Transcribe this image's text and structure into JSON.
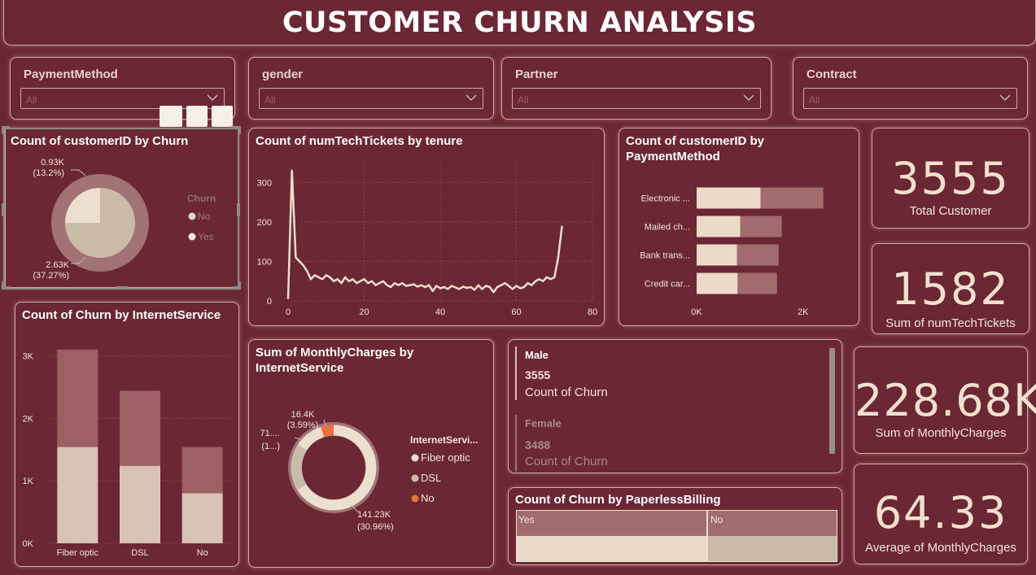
{
  "header": {
    "title": "CUSTOMER CHURN ANALYSIS"
  },
  "slicers": [
    {
      "title": "PaymentMethod",
      "value": "All"
    },
    {
      "title": "gender",
      "value": "All"
    },
    {
      "title": "Partner",
      "value": "All"
    },
    {
      "title": "Contract",
      "value": "All"
    }
  ],
  "pie_churn": {
    "title": "Count of customerID by Churn",
    "legend_title": "Churn",
    "legend": [
      "No",
      "Yes"
    ],
    "label_small_value": "0.93K",
    "label_small_pct": "(13.2%)",
    "label_large_value": "2.63K",
    "label_large_pct": "(37.27%)"
  },
  "line_tenure": {
    "title": "Count of numTechTickets by tenure"
  },
  "bar_payment": {
    "title_line1": "Count of customerID by",
    "title_line2": "PaymentMethod"
  },
  "column_internet": {
    "title": "Count of Churn by InternetService"
  },
  "donut_monthly": {
    "title_line1": "Sum of MonthlyCharges by",
    "title_line2": "InternetService",
    "legend_title": "InternetServi...",
    "legend": [
      "Fiber optic",
      "DSL",
      "No"
    ],
    "label_top_value": "16.4K",
    "label_top_pct": "(3.59%)",
    "label_left_value": "71....",
    "label_left_pct": "(1...)",
    "label_bottom_value": "141.23K",
    "label_bottom_pct": "(30.96%)"
  },
  "multirow_card": {
    "rows": [
      {
        "category": "Male",
        "value": "3555",
        "label": "Count of Churn"
      },
      {
        "category": "Female",
        "value": "3488",
        "label": "Count of Churn"
      }
    ]
  },
  "paperless": {
    "title": "Count of Churn by PaperlessBilling",
    "categories": [
      "Yes",
      "No"
    ]
  },
  "kpis": [
    {
      "value": "3555",
      "label": "Total Customer"
    },
    {
      "value": "1582",
      "label": "Sum of numTechTickets"
    },
    {
      "value": "228.68K",
      "label": "Sum of MonthlyCharges"
    },
    {
      "value": "64.33",
      "label": "Average of MonthlyCharges"
    }
  ],
  "colors": {
    "background": "#6b2733",
    "light": "#ecd9c6",
    "light_muted": "#c9bba8",
    "accent_dark": "#9c6064",
    "orange": "#e8713d"
  },
  "chart_data": [
    {
      "type": "pie",
      "title": "Count of customerID by Churn",
      "legend_title": "Churn",
      "categories": [
        "No",
        "Yes"
      ],
      "labels": [
        "2.63K (37.27%)",
        "0.93K (13.2%)"
      ],
      "legend_position": "right"
    },
    {
      "type": "line",
      "title": "Count of numTechTickets by tenure",
      "x": [
        0,
        1,
        2,
        3,
        4,
        5,
        6,
        7,
        8,
        9,
        10,
        11,
        12,
        13,
        14,
        15,
        16,
        17,
        18,
        19,
        20,
        21,
        22,
        23,
        24,
        25,
        26,
        27,
        28,
        29,
        30,
        31,
        32,
        33,
        34,
        35,
        36,
        37,
        38,
        39,
        40,
        41,
        42,
        43,
        44,
        45,
        46,
        47,
        48,
        49,
        50,
        51,
        52,
        53,
        54,
        55,
        56,
        57,
        58,
        59,
        60,
        61,
        62,
        63,
        64,
        65,
        66,
        67,
        68,
        69,
        70,
        71,
        72
      ],
      "values": [
        5,
        330,
        110,
        100,
        90,
        75,
        55,
        65,
        60,
        55,
        65,
        60,
        50,
        55,
        45,
        60,
        50,
        55,
        45,
        50,
        55,
        45,
        50,
        40,
        45,
        50,
        40,
        35,
        45,
        40,
        45,
        38,
        40,
        42,
        36,
        40,
        35,
        40,
        25,
        38,
        32,
        35,
        30,
        38,
        34,
        30,
        36,
        33,
        35,
        28,
        40,
        30,
        38,
        35,
        22,
        35,
        40,
        45,
        38,
        30,
        38,
        32,
        35,
        45,
        40,
        50,
        55,
        50,
        60,
        55,
        60,
        110,
        190
      ],
      "xlim": [
        0,
        80
      ],
      "ylim": [
        0,
        350
      ],
      "x_ticks": [
        0,
        20,
        40,
        60,
        80
      ],
      "y_ticks": [
        0,
        100,
        200,
        300
      ],
      "grid": true
    },
    {
      "type": "bar",
      "orientation": "horizontal",
      "title": "Count of customerID by PaymentMethod",
      "categories": [
        "Electronic ...",
        "Mailed ch...",
        "Bank trans...",
        "Credit car..."
      ],
      "series": [
        {
          "values": [
            1200,
            820,
            760,
            770
          ]
        },
        {
          "values": [
            1180,
            780,
            780,
            740
          ]
        }
      ],
      "x_ticks": [
        "0K",
        "2K"
      ],
      "xlim": [
        0,
        2600
      ],
      "stacked": true
    },
    {
      "type": "bar",
      "title": "Count of Churn by InternetService",
      "categories": [
        "Fiber optic",
        "DSL",
        "No"
      ],
      "series": [
        {
          "values": [
            1540,
            1240,
            800
          ]
        },
        {
          "values": [
            1560,
            1200,
            740
          ]
        }
      ],
      "y_ticks": [
        "0K",
        "1K",
        "2K",
        "3K"
      ],
      "ylim": [
        0,
        3200
      ],
      "stacked": true
    },
    {
      "type": "pie",
      "variant": "donut",
      "title": "Sum of MonthlyCharges by InternetService",
      "legend_title": "InternetServi...",
      "categories": [
        "Fiber optic",
        "DSL",
        "No"
      ],
      "labels": [
        "141.23K (30.96%)",
        "71.... (1...)",
        "16.4K (3.59%)"
      ],
      "legend_position": "right"
    },
    {
      "type": "bar",
      "variant": "100% stacked",
      "title": "Count of Churn by PaperlessBilling",
      "categories": [
        "Yes",
        "No"
      ],
      "stacked": true
    }
  ]
}
